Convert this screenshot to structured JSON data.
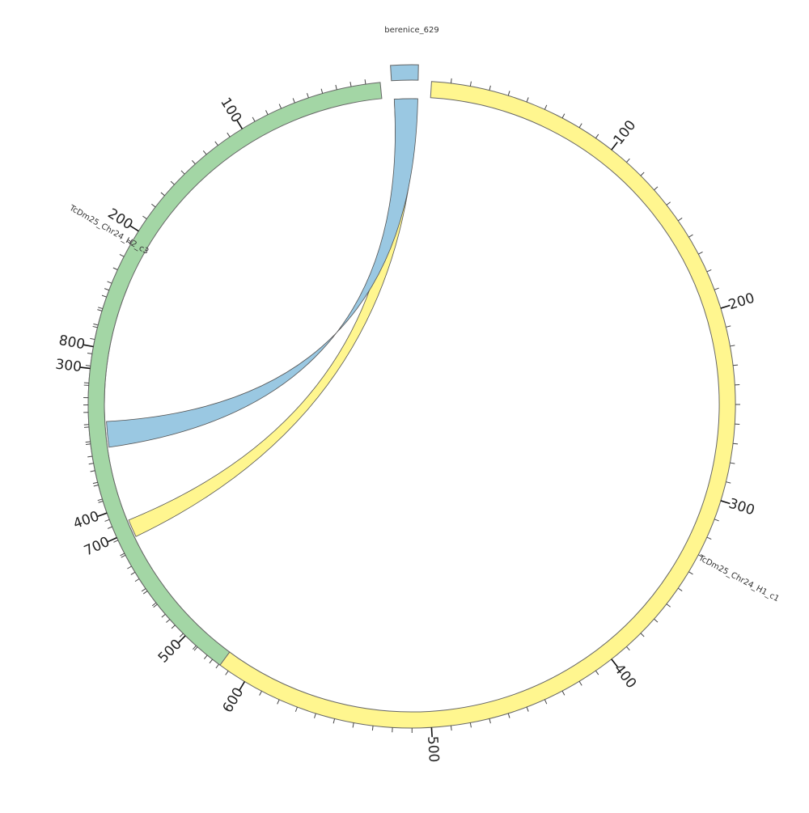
{
  "title": "berenice_629",
  "segments": [
    {
      "id": "c1",
      "label": "TcDm25_Chr24_H1_c1",
      "length": 836,
      "color": "#fff68f",
      "tick_labels": [
        "100",
        "200",
        "300",
        "400",
        "500",
        "600",
        "700",
        "800"
      ]
    },
    {
      "id": "c3",
      "label": "TcDm25_Chr24_H2_c3",
      "length": 531,
      "color": "#a3d6a5",
      "tick_labels": [
        "100",
        "200",
        "300",
        "400",
        "500"
      ]
    },
    {
      "id": "b",
      "label": "",
      "length": 15,
      "color": "#9ac8e2",
      "tick_labels": []
    }
  ],
  "links": [
    {
      "color": "#fff68f",
      "from_segment": "c3",
      "from_range": [
        410,
        423
      ],
      "to_segment": "b",
      "to_range": [
        1,
        14
      ]
    },
    {
      "color": "#9ac8e2",
      "from_segment": "b",
      "from_range": [
        1,
        15
      ],
      "to_segment": "c1",
      "to_range": [
        747,
        761
      ]
    }
  ]
}
